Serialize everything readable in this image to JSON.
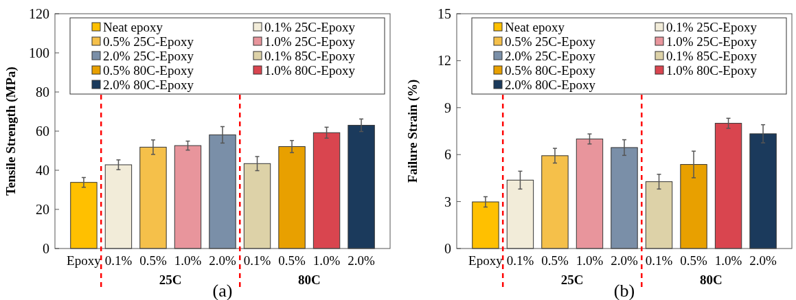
{
  "chart_data": [
    {
      "type": "bar",
      "ylabel": "Tensile Strength (MPa)",
      "categories": [
        "Epoxy",
        "0.1%",
        "0.5%",
        "1.0%",
        "2.0%",
        "0.1%",
        "0.5%",
        "1.0%",
        "2.0%"
      ],
      "ylim": [
        0,
        120
      ],
      "yticks": [
        0,
        20,
        40,
        60,
        80,
        100,
        120
      ],
      "legend": "top",
      "grid": false,
      "series": [
        {
          "name": "Neat epoxy",
          "color": "#ffc000",
          "values": [
            33.8,
            null,
            null,
            null,
            null,
            null,
            null,
            null,
            null
          ],
          "errors": [
            2.5,
            null,
            null,
            null,
            null,
            null,
            null,
            null,
            null
          ]
        },
        {
          "name": "0.1% 25C-Epoxy",
          "color": "#f2ecd9",
          "values": [
            null,
            42.8,
            null,
            null,
            null,
            null,
            null,
            null,
            null
          ],
          "errors": [
            null,
            2.5,
            null,
            null,
            null,
            null,
            null,
            null,
            null
          ]
        },
        {
          "name": "0.5% 25C-Epoxy",
          "color": "#f5c04a",
          "values": [
            null,
            null,
            51.8,
            null,
            null,
            null,
            null,
            null,
            null
          ],
          "errors": [
            null,
            null,
            3.7,
            null,
            null,
            null,
            null,
            null,
            null
          ]
        },
        {
          "name": "1.0% 25C-Epoxy",
          "color": "#e8959c",
          "values": [
            null,
            null,
            null,
            52.6,
            null,
            null,
            null,
            null,
            null
          ],
          "errors": [
            null,
            null,
            null,
            2.3,
            null,
            null,
            null,
            null,
            null
          ]
        },
        {
          "name": "2.0% 25C-Epoxy",
          "color": "#7a8fa8",
          "values": [
            null,
            null,
            null,
            null,
            58.1,
            null,
            null,
            null,
            null
          ],
          "errors": [
            null,
            null,
            null,
            null,
            4.2,
            null,
            null,
            null,
            null
          ]
        },
        {
          "name": "0.1% 85C-Epoxy",
          "color": "#ddd2a8",
          "values": [
            null,
            null,
            null,
            null,
            null,
            43.4,
            null,
            null,
            null
          ],
          "errors": [
            null,
            null,
            null,
            null,
            null,
            3.6,
            null,
            null,
            null
          ]
        },
        {
          "name": "0.5% 80C-Epoxy",
          "color": "#e8a000",
          "values": [
            null,
            null,
            null,
            null,
            null,
            null,
            52.1,
            null,
            null
          ],
          "errors": [
            null,
            null,
            null,
            null,
            null,
            null,
            3.1,
            null,
            null
          ]
        },
        {
          "name": "1.0% 80C-Epoxy",
          "color": "#d9454f",
          "values": [
            null,
            null,
            null,
            null,
            null,
            null,
            null,
            59.2,
            null
          ],
          "errors": [
            null,
            null,
            null,
            null,
            null,
            null,
            null,
            2.8,
            null
          ]
        },
        {
          "name": "2.0% 80C-Epoxy",
          "color": "#1b3a5c",
          "values": [
            null,
            null,
            null,
            null,
            null,
            null,
            null,
            null,
            63.0
          ],
          "errors": [
            null,
            null,
            null,
            null,
            null,
            null,
            null,
            null,
            3.2
          ]
        }
      ],
      "annotations": [
        "25C",
        "80C",
        "(a)"
      ]
    },
    {
      "type": "bar",
      "ylabel": "Failure Strain (%)",
      "categories": [
        "Epoxy",
        "0.1%",
        "0.5%",
        "1.0%",
        "2.0%",
        "0.1%",
        "0.5%",
        "1.0%",
        "2.0%"
      ],
      "ylim": [
        0,
        15
      ],
      "yticks": [
        0,
        3,
        6,
        9,
        12,
        15
      ],
      "legend": "top",
      "grid": false,
      "series": [
        {
          "name": "Neat epoxy",
          "color": "#ffc000",
          "values": [
            2.98,
            null,
            null,
            null,
            null,
            null,
            null,
            null,
            null
          ],
          "errors": [
            0.33,
            null,
            null,
            null,
            null,
            null,
            null,
            null,
            null
          ]
        },
        {
          "name": "0.1% 25C-Epoxy",
          "color": "#f2ecd9",
          "values": [
            null,
            4.37,
            null,
            null,
            null,
            null,
            null,
            null,
            null
          ],
          "errors": [
            null,
            0.57,
            null,
            null,
            null,
            null,
            null,
            null,
            null
          ]
        },
        {
          "name": "0.5% 25C-Epoxy",
          "color": "#f5c04a",
          "values": [
            null,
            null,
            5.93,
            null,
            null,
            null,
            null,
            null,
            null
          ],
          "errors": [
            null,
            null,
            0.47,
            null,
            null,
            null,
            null,
            null,
            null
          ]
        },
        {
          "name": "1.0% 25C-Epoxy",
          "color": "#e8959c",
          "values": [
            null,
            null,
            null,
            7.0,
            null,
            null,
            null,
            null,
            null
          ],
          "errors": [
            null,
            null,
            null,
            0.32,
            null,
            null,
            null,
            null,
            null
          ]
        },
        {
          "name": "2.0% 25C-Epoxy",
          "color": "#7a8fa8",
          "values": [
            null,
            null,
            null,
            null,
            6.45,
            null,
            null,
            null,
            null
          ],
          "errors": [
            null,
            null,
            null,
            null,
            0.5,
            null,
            null,
            null,
            null
          ]
        },
        {
          "name": "0.1% 85C-Epoxy",
          "color": "#ddd2a8",
          "values": [
            null,
            null,
            null,
            null,
            null,
            4.27,
            null,
            null,
            null
          ],
          "errors": [
            null,
            null,
            null,
            null,
            null,
            0.47,
            null,
            null,
            null
          ]
        },
        {
          "name": "0.5% 80C-Epoxy",
          "color": "#e8a000",
          "values": [
            null,
            null,
            null,
            null,
            null,
            null,
            5.37,
            null,
            null
          ],
          "errors": [
            null,
            null,
            null,
            null,
            null,
            null,
            0.85,
            null,
            null
          ]
        },
        {
          "name": "1.0% 80C-Epoxy",
          "color": "#d9454f",
          "values": [
            null,
            null,
            null,
            null,
            null,
            null,
            null,
            8.0,
            null
          ],
          "errors": [
            null,
            null,
            null,
            null,
            null,
            null,
            null,
            0.32,
            null
          ]
        },
        {
          "name": "2.0% 80C-Epoxy",
          "color": "#1b3a5c",
          "values": [
            null,
            null,
            null,
            null,
            null,
            null,
            null,
            null,
            7.33
          ],
          "errors": [
            null,
            null,
            null,
            null,
            null,
            null,
            null,
            null,
            0.58
          ]
        }
      ],
      "annotations": [
        "25C",
        "80C",
        "(b)"
      ]
    }
  ]
}
